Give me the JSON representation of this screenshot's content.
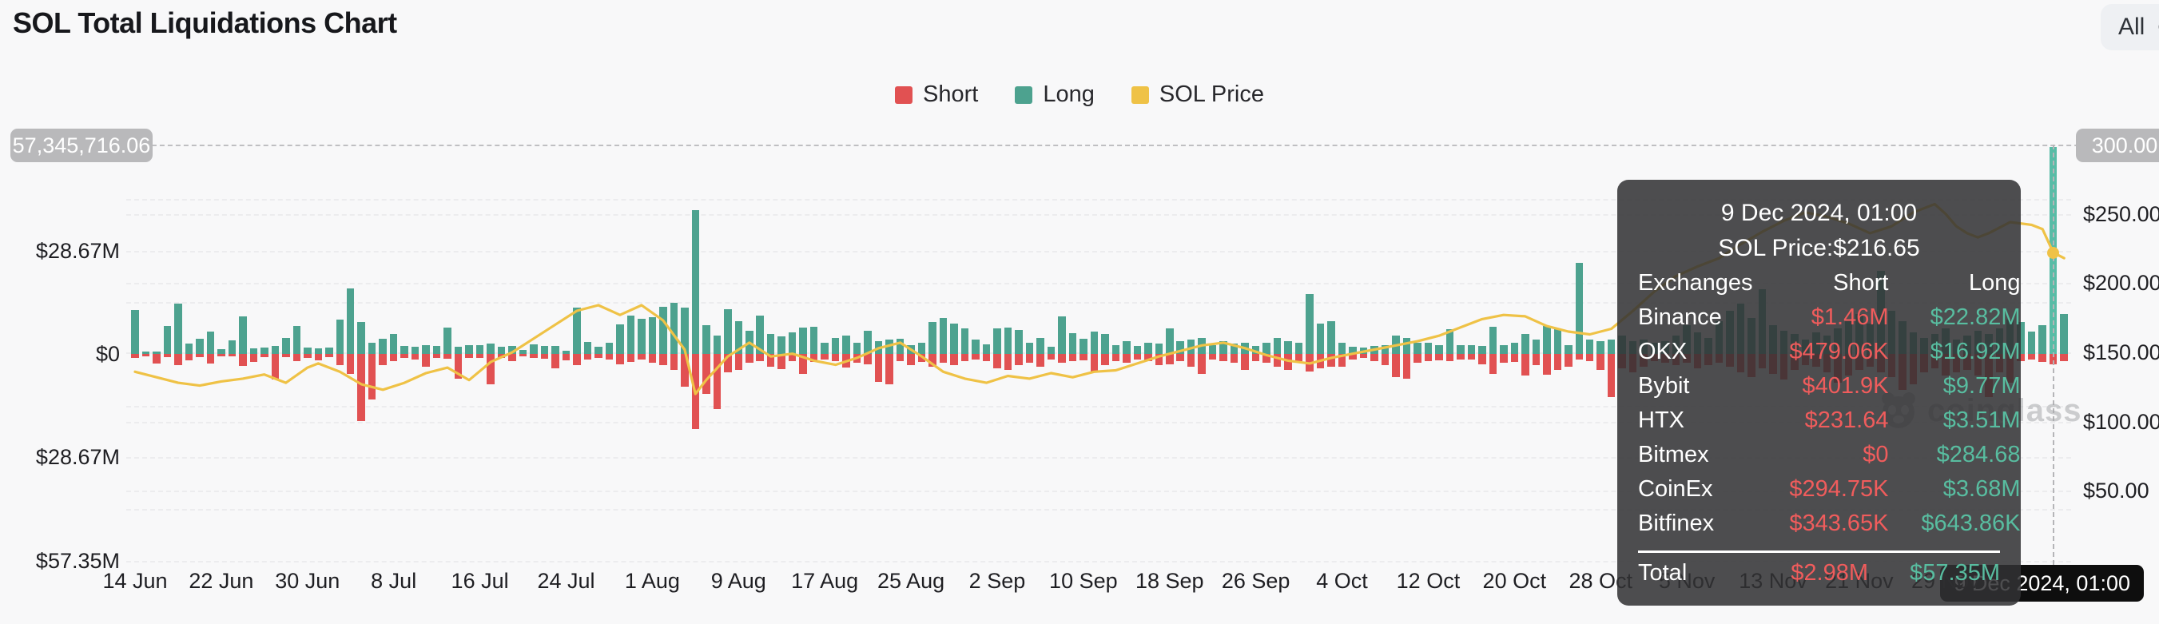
{
  "header": {
    "title": "SOL Total Liquidations Chart",
    "range_button": "All"
  },
  "legend": [
    {
      "label": "Short",
      "color": "#E15152"
    },
    {
      "label": "Long",
      "color": "#4DA28F"
    },
    {
      "label": "SOL Price",
      "color": "#EFC246"
    }
  ],
  "left_axis": {
    "crosshair_label": "57,345,716.06",
    "ticks": [
      {
        "label": "$28.67M",
        "value": 28.67
      },
      {
        "label": "$0",
        "value": 0
      },
      {
        "label": "$28.67M",
        "value": -28.67
      },
      {
        "label": "$57.35M",
        "value": -57.35
      }
    ]
  },
  "right_axis": {
    "crosshair_label": "300.00",
    "ticks": [
      {
        "label": "$250.00",
        "value": 250
      },
      {
        "label": "$200.00",
        "value": 200
      },
      {
        "label": "$150.00",
        "value": 150
      },
      {
        "label": "$100.00",
        "value": 100
      },
      {
        "label": "$50.00",
        "value": 50
      }
    ]
  },
  "x_axis": {
    "crosshair_label": "9 Dec 2024, 01:00",
    "tick_labels": [
      "14 Jun",
      "22 Jun",
      "30 Jun",
      "8 Jul",
      "16 Jul",
      "24 Jul",
      "1 Aug",
      "9 Aug",
      "17 Aug",
      "25 Aug",
      "2 Sep",
      "10 Sep",
      "18 Sep",
      "26 Sep",
      "4 Oct",
      "12 Oct",
      "20 Oct",
      "28 Oct",
      "5 Nov",
      "13 Nov",
      "21 Nov",
      "29 Nov"
    ]
  },
  "tooltip": {
    "title": "9 Dec 2024, 01:00",
    "price_line": "SOL Price:$216.65",
    "columns": [
      "Exchanges",
      "Short",
      "Long"
    ],
    "rows": [
      [
        "Binance",
        "$1.46M",
        "$22.82M"
      ],
      [
        "OKX",
        "$479.06K",
        "$16.92M"
      ],
      [
        "Bybit",
        "$401.9K",
        "$9.77M"
      ],
      [
        "HTX",
        "$231.64",
        "$3.51M"
      ],
      [
        "Bitmex",
        "$0",
        "$284.68"
      ],
      [
        "CoinEx",
        "$294.75K",
        "$3.68M"
      ],
      [
        "Bitfinex",
        "$343.65K",
        "$643.86K"
      ]
    ],
    "total": [
      "Total",
      "$2.98M",
      "$57.35M"
    ]
  },
  "watermark": "coinglass",
  "chart_data": {
    "type": "bar+line",
    "title": "SOL Total Liquidations Chart",
    "x_start": "14 Jun 2024",
    "x_end": "10 Dec 2024",
    "x_interval_days": 1,
    "x_tick_labels": [
      "14 Jun",
      "22 Jun",
      "30 Jun",
      "8 Jul",
      "16 Jul",
      "24 Jul",
      "1 Aug",
      "9 Aug",
      "17 Aug",
      "25 Aug",
      "2 Sep",
      "10 Sep",
      "18 Sep",
      "26 Sep",
      "4 Oct",
      "12 Oct",
      "20 Oct",
      "28 Oct",
      "5 Nov",
      "13 Nov",
      "21 Nov",
      "29 Nov"
    ],
    "left_axis_unit": "USD liquidations (M)",
    "left_axis_range_m": [
      -57.35,
      57.35
    ],
    "right_axis_unit": "SOL price (USD)",
    "right_axis_range_usd": [
      0,
      300
    ],
    "grid": "dashed",
    "legend_position": "top-center",
    "highlight_day_index": 178,
    "highlight": {
      "date": "9 Dec 2024, 01:00",
      "long": "$57.35M",
      "short": "$2.98M",
      "sol_price": 216.65,
      "crosshair_left_value": "57,345,716.06",
      "crosshair_right_value": "300.00"
    },
    "series": [
      {
        "name": "Short",
        "direction": "down",
        "color": "#E15152",
        "unit": "$M",
        "values": [
          1.1,
          0.7,
          2.6,
          0.9,
          3.0,
          1.8,
          0.9,
          2.6,
          0.7,
          0.7,
          3.3,
          2.2,
          0.9,
          7.0,
          0.9,
          2.1,
          1.1,
          1.8,
          0.9,
          3.0,
          5.5,
          18.5,
          12.6,
          3.1,
          2.0,
          1.2,
          1.5,
          3.5,
          1.0,
          1.4,
          6.8,
          1.1,
          1.1,
          8.4,
          1.2,
          2.0,
          0.6,
          1.1,
          1.3,
          4.0,
          1.8,
          3.2,
          1.5,
          1.0,
          1.5,
          2.8,
          2.2,
          1.5,
          2.5,
          3.0,
          4.5,
          9.0,
          20.8,
          11.0,
          15.2,
          5.0,
          4.5,
          2.5,
          2.0,
          3.5,
          4.2,
          2.0,
          5.5,
          2.2,
          1.5,
          2.0,
          3.8,
          2.5,
          2.8,
          7.7,
          8.5,
          2.0,
          3.0,
          2.2,
          3.5,
          2.5,
          3.0,
          2.0,
          1.5,
          2.0,
          4.0,
          4.5,
          3.0,
          2.5,
          3.5,
          1.5,
          2.5,
          2.0,
          1.8,
          5.0,
          3.0,
          2.0,
          2.5,
          1.5,
          2.0,
          3.0,
          2.8,
          2.0,
          3.5,
          5.5,
          1.5,
          2.0,
          2.5,
          4.5,
          2.0,
          2.5,
          3.5,
          4.5,
          2.0,
          4.8,
          4.0,
          3.5,
          3.5,
          1.5,
          1.2,
          2.0,
          3.0,
          6.5,
          6.8,
          2.5,
          2.0,
          1.8,
          2.0,
          1.5,
          1.5,
          2.8,
          5.5,
          2.5,
          2.2,
          6.0,
          3.0,
          5.8,
          4.5,
          3.5,
          1.5,
          2.0,
          4.5,
          12.0,
          4.0,
          5.0,
          3.5,
          2.0,
          2.5,
          3.0,
          2.5,
          4.0,
          3.0,
          2.5,
          3.5,
          5.0,
          6.5,
          4.0,
          5.5,
          7.0,
          4.5,
          3.0,
          3.5,
          5.0,
          8.0,
          6.0,
          4.5,
          3.5,
          5.0,
          6.5,
          10.0,
          8.5,
          5.0,
          4.0,
          6.0,
          5.0,
          4.5,
          6.0,
          12.0,
          5.0,
          8.0,
          2.0,
          1.5,
          2.2,
          2.98,
          2.0
        ]
      },
      {
        "name": "Long",
        "direction": "up",
        "color": "#4DA28F",
        "unit": "$M",
        "values": [
          12.2,
          0.6,
          0.7,
          7.7,
          13.9,
          2.8,
          4.1,
          6.3,
          1.3,
          3.7,
          10.3,
          1.6,
          1.8,
          2.2,
          4.4,
          7.7,
          1.8,
          1.5,
          1.7,
          9.6,
          18.1,
          8.9,
          3.0,
          4.2,
          5.5,
          2.3,
          2.1,
          2.5,
          2.2,
          7.3,
          2.0,
          2.4,
          2.4,
          2.8,
          2.0,
          2.3,
          1.0,
          2.6,
          2.3,
          2.2,
          0.9,
          12.8,
          3.4,
          2.0,
          3.2,
          8.2,
          10.6,
          9.8,
          10.2,
          13.0,
          14.2,
          12.9,
          39.9,
          8.0,
          5.0,
          12.5,
          9.0,
          6.5,
          10.6,
          5.5,
          4.8,
          6.0,
          7.2,
          7.6,
          3.0,
          4.5,
          5.0,
          3.2,
          6.4,
          3.5,
          4.0,
          4.2,
          2.4,
          3.0,
          8.8,
          10.0,
          8.4,
          7.0,
          4.0,
          2.6,
          7.0,
          7.4,
          6.6,
          3.0,
          4.5,
          2.0,
          10.5,
          5.8,
          4.2,
          6.2,
          5.6,
          2.5,
          3.5,
          2.2,
          3.0,
          2.8,
          7.0,
          3.5,
          4.0,
          4.5,
          2.5,
          3.5,
          2.8,
          3.0,
          2.2,
          3.0,
          4.5,
          3.5,
          3.0,
          16.6,
          8.5,
          9.0,
          3.0,
          2.0,
          1.8,
          2.2,
          2.5,
          5.0,
          4.5,
          3.0,
          3.0,
          2.5,
          6.8,
          2.5,
          2.5,
          2.2,
          7.5,
          2.5,
          3.0,
          5.5,
          4.0,
          7.8,
          7.0,
          2.5,
          25.2,
          4.0,
          3.5,
          4.0,
          5.0,
          3.5,
          4.0,
          3.0,
          3.5,
          5.0,
          8.0,
          6.0,
          4.5,
          9.0,
          12.0,
          14.0,
          10.0,
          18.0,
          8.0,
          6.5,
          5.5,
          4.0,
          6.0,
          5.0,
          7.0,
          9.0,
          11.0,
          8.5,
          23.0,
          12.0,
          9.0,
          6.0,
          4.5,
          5.5,
          7.0,
          4.0,
          5.0,
          6.5,
          5.5,
          7.0,
          9.5,
          8.9,
          6.2,
          7.9,
          57.35,
          11.1
        ]
      },
      {
        "name": "SOL Price",
        "color": "#EFC246",
        "unit": "USD",
        "points": [
          [
            0,
            136
          ],
          [
            2,
            132
          ],
          [
            4,
            128
          ],
          [
            6,
            126
          ],
          [
            8,
            129
          ],
          [
            10,
            131
          ],
          [
            12,
            134
          ],
          [
            14,
            128
          ],
          [
            16,
            139
          ],
          [
            17,
            142
          ],
          [
            19,
            136
          ],
          [
            21,
            127
          ],
          [
            23,
            123
          ],
          [
            25,
            128
          ],
          [
            27,
            135
          ],
          [
            29,
            139
          ],
          [
            31,
            130
          ],
          [
            33,
            143
          ],
          [
            35,
            150
          ],
          [
            37,
            160
          ],
          [
            39,
            170
          ],
          [
            41,
            180
          ],
          [
            43,
            184
          ],
          [
            45,
            177
          ],
          [
            47,
            184
          ],
          [
            49,
            173
          ],
          [
            51,
            152
          ],
          [
            52,
            120
          ],
          [
            53,
            130
          ],
          [
            55,
            147
          ],
          [
            57,
            157
          ],
          [
            59,
            147
          ],
          [
            61,
            149
          ],
          [
            63,
            144
          ],
          [
            65,
            141
          ],
          [
            67,
            146
          ],
          [
            69,
            153
          ],
          [
            71,
            157
          ],
          [
            73,
            147
          ],
          [
            75,
            136
          ],
          [
            77,
            131
          ],
          [
            79,
            128
          ],
          [
            81,
            133
          ],
          [
            83,
            131
          ],
          [
            85,
            135
          ],
          [
            87,
            132
          ],
          [
            89,
            136
          ],
          [
            91,
            137
          ],
          [
            93,
            142
          ],
          [
            95,
            147
          ],
          [
            97,
            151
          ],
          [
            99,
            155
          ],
          [
            101,
            157
          ],
          [
            103,
            153
          ],
          [
            105,
            148
          ],
          [
            107,
            144
          ],
          [
            109,
            142
          ],
          [
            111,
            146
          ],
          [
            113,
            149
          ],
          [
            115,
            152
          ],
          [
            117,
            155
          ],
          [
            119,
            158
          ],
          [
            121,
            162
          ],
          [
            123,
            168
          ],
          [
            125,
            174
          ],
          [
            127,
            177
          ],
          [
            129,
            176
          ],
          [
            131,
            169
          ],
          [
            133,
            165
          ],
          [
            135,
            163
          ],
          [
            137,
            167
          ],
          [
            139,
            180
          ],
          [
            141,
            194
          ],
          [
            143,
            205
          ],
          [
            145,
            212
          ],
          [
            147,
            218
          ],
          [
            149,
            228
          ],
          [
            151,
            237
          ],
          [
            153,
            245
          ],
          [
            155,
            251
          ],
          [
            157,
            248
          ],
          [
            159,
            243
          ],
          [
            161,
            236
          ],
          [
            163,
            241
          ],
          [
            165,
            251
          ],
          [
            167,
            257
          ],
          [
            168,
            250
          ],
          [
            169,
            241
          ],
          [
            170,
            236
          ],
          [
            171,
            233
          ],
          [
            172,
            236
          ],
          [
            173,
            240
          ],
          [
            174,
            244
          ],
          [
            175,
            243
          ],
          [
            176,
            242
          ],
          [
            177,
            239
          ],
          [
            178,
            222
          ],
          [
            179,
            218
          ]
        ]
      }
    ]
  }
}
